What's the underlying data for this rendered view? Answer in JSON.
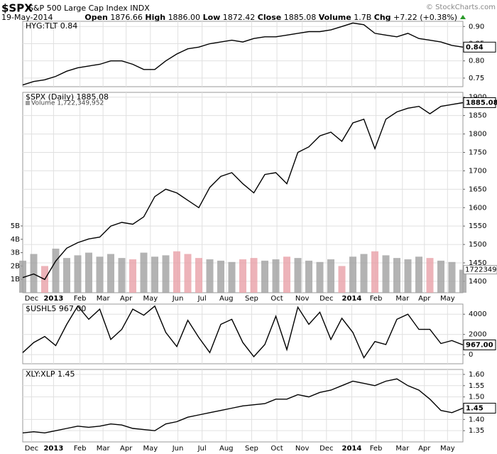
{
  "header": {
    "symbol": "$SPX",
    "name": "S&P 500 Large Cap Index INDX",
    "date": "19-May-2014",
    "watermark": "© StockCharts.com",
    "quote": [
      {
        "label": "Open",
        "value": "1876.66"
      },
      {
        "label": "High",
        "value": "1886.00"
      },
      {
        "label": "Low",
        "value": "1872.42"
      },
      {
        "label": "Close",
        "value": "1885.08"
      },
      {
        "label": "Volume",
        "value": "1.7B"
      },
      {
        "label": "Chg",
        "value": "+7.22 (+0.38%)"
      }
    ]
  },
  "chart_data": [
    {
      "type": "line",
      "legend": "HYG:TLT 0.84",
      "last_label": "0.84",
      "xlim": [
        0,
        40
      ],
      "x": [
        0,
        1,
        2,
        3,
        4,
        5,
        6,
        7,
        8,
        9,
        10,
        11,
        12,
        13,
        14,
        15,
        16,
        17,
        18,
        19,
        20,
        21,
        22,
        23,
        24,
        25,
        26,
        27,
        28,
        29,
        30,
        31,
        32,
        33,
        34,
        35,
        36,
        37,
        38,
        39,
        40
      ],
      "ylim": [
        0.725,
        0.915
      ],
      "yticks": [
        {
          "value": 0.9,
          "label": "0.90"
        },
        0.85,
        {
          "value": 0.8,
          "label": "0.80"
        },
        0.75
      ],
      "grid": true,
      "series": [
        {
          "name": "HYG:TLT",
          "color": "#000000",
          "values": [
            0.73,
            0.74,
            0.745,
            0.755,
            0.77,
            0.78,
            0.785,
            0.79,
            0.8,
            0.8,
            0.79,
            0.775,
            0.775,
            0.8,
            0.82,
            0.835,
            0.84,
            0.85,
            0.855,
            0.86,
            0.855,
            0.865,
            0.87,
            0.87,
            0.875,
            0.88,
            0.885,
            0.885,
            0.89,
            0.9,
            0.91,
            0.905,
            0.88,
            0.875,
            0.87,
            0.88,
            0.865,
            0.86,
            0.855,
            0.845,
            0.84
          ]
        }
      ]
    },
    {
      "type": "price-volume",
      "legend": "$SPX (Daily) 1885.08",
      "volume_legend": "Volume 1,722,349,952",
      "last_label": "1885.08",
      "volume_last_label": "1722349",
      "xlim": [
        0,
        40
      ],
      "x": [
        0,
        1,
        2,
        3,
        4,
        5,
        6,
        7,
        8,
        9,
        10,
        11,
        12,
        13,
        14,
        15,
        16,
        17,
        18,
        19,
        20,
        21,
        22,
        23,
        24,
        25,
        26,
        27,
        28,
        29,
        30,
        31,
        32,
        33,
        34,
        35,
        36,
        37,
        38,
        39,
        40
      ],
      "xticks": [
        {
          "value": 0.8,
          "label": "Dec"
        },
        {
          "value": 2.8,
          "label": "2013"
        },
        {
          "value": 5.2,
          "label": "Feb"
        },
        {
          "value": 7.3,
          "label": "Mar"
        },
        {
          "value": 9.4,
          "label": "Apr"
        },
        {
          "value": 11.6,
          "label": "May"
        },
        {
          "value": 14.1,
          "label": "Jun"
        },
        {
          "value": 16.3,
          "label": "Jul"
        },
        {
          "value": 18.5,
          "label": "Aug"
        },
        {
          "value": 20.8,
          "label": "Sep"
        },
        {
          "value": 23.1,
          "label": "Oct"
        },
        {
          "value": 25.4,
          "label": "Nov"
        },
        {
          "value": 27.6,
          "label": "Dec"
        },
        {
          "value": 29.9,
          "label": "2014"
        },
        {
          "value": 32.1,
          "label": "Feb"
        },
        {
          "value": 34.5,
          "label": "Mar"
        },
        {
          "value": 36.5,
          "label": "Apr"
        },
        {
          "value": 38.6,
          "label": "May"
        }
      ],
      "ylim": [
        1369,
        1913
      ],
      "yticks": [
        1400,
        1450,
        1500,
        1550,
        1600,
        1650,
        1700,
        1750,
        1800,
        1850,
        1900
      ],
      "y2lim": [
        0,
        15
      ],
      "y2ticks": [
        {
          "value": 1,
          "label": "1B"
        },
        {
          "value": 2,
          "label": "2B"
        },
        {
          "value": 3,
          "label": "3B"
        },
        {
          "value": 4,
          "label": "4B"
        },
        {
          "value": 5,
          "label": "5B"
        }
      ],
      "grid": true,
      "series": [
        {
          "name": "$SPX",
          "color": "#000000",
          "values": [
            1410,
            1420,
            1405,
            1455,
            1490,
            1505,
            1515,
            1520,
            1550,
            1560,
            1555,
            1575,
            1630,
            1650,
            1640,
            1620,
            1600,
            1655,
            1685,
            1695,
            1665,
            1640,
            1690,
            1695,
            1665,
            1750,
            1765,
            1795,
            1805,
            1780,
            1830,
            1840,
            1760,
            1840,
            1860,
            1870,
            1875,
            1855,
            1875,
            1880,
            1885.08
          ]
        },
        {
          "name": "Volume",
          "axis": "y2",
          "color": "#a0a0a0",
          "down_color": "#e8a0a8",
          "values": [
            2.4,
            2.9,
            2.0,
            3.3,
            2.6,
            2.8,
            3.0,
            2.7,
            2.9,
            2.6,
            2.5,
            3.0,
            2.7,
            2.8,
            3.1,
            2.9,
            2.6,
            2.5,
            2.4,
            2.3,
            2.5,
            2.6,
            2.4,
            2.5,
            2.7,
            2.6,
            2.4,
            2.3,
            2.5,
            2.0,
            2.7,
            2.9,
            3.1,
            2.8,
            2.6,
            2.5,
            2.7,
            2.6,
            2.4,
            2.3,
            1.722349952
          ]
        }
      ]
    },
    {
      "type": "line",
      "legend": "$USHL5 967.00",
      "last_label": "967.00",
      "xlim": [
        0,
        40
      ],
      "x": [
        0,
        1,
        2,
        3,
        4,
        5,
        6,
        7,
        8,
        9,
        10,
        11,
        12,
        13,
        14,
        15,
        16,
        17,
        18,
        19,
        20,
        21,
        22,
        23,
        24,
        25,
        26,
        27,
        28,
        29,
        30,
        31,
        32,
        33,
        34,
        35,
        36,
        37,
        38,
        39,
        40
      ],
      "ylim": [
        -900,
        5000
      ],
      "yticks": [
        0,
        2000,
        4000
      ],
      "grid": true,
      "series": [
        {
          "name": "$USHL5",
          "color": "#000000",
          "values": [
            200,
            1200,
            1800,
            900,
            3000,
            4800,
            3500,
            4500,
            1500,
            2500,
            4500,
            3900,
            4800,
            2200,
            800,
            3400,
            1700,
            200,
            3000,
            3500,
            1200,
            -200,
            1000,
            3800,
            500,
            4700,
            3000,
            4200,
            1500,
            3600,
            2200,
            -300,
            1300,
            1000,
            3500,
            4000,
            2500,
            2500,
            1100,
            1400,
            967
          ]
        }
      ]
    },
    {
      "type": "line",
      "legend": "XLY:XLP 1.45",
      "last_label": "1.45",
      "xlim": [
        0,
        40
      ],
      "x": [
        0,
        1,
        2,
        3,
        4,
        5,
        6,
        7,
        8,
        9,
        10,
        11,
        12,
        13,
        14,
        15,
        16,
        17,
        18,
        19,
        20,
        21,
        22,
        23,
        24,
        25,
        26,
        27,
        28,
        29,
        30,
        31,
        32,
        33,
        34,
        35,
        36,
        37,
        38,
        39,
        40
      ],
      "xticks": [
        {
          "value": 0.8,
          "label": "Dec"
        },
        {
          "value": 2.8,
          "label": "2013"
        },
        {
          "value": 5.2,
          "label": "Feb"
        },
        {
          "value": 7.3,
          "label": "Mar"
        },
        {
          "value": 9.4,
          "label": "Apr"
        },
        {
          "value": 11.6,
          "label": "May"
        },
        {
          "value": 14.1,
          "label": "Jun"
        },
        {
          "value": 16.3,
          "label": "Jul"
        },
        {
          "value": 18.5,
          "label": "Aug"
        },
        {
          "value": 20.8,
          "label": "Sep"
        },
        {
          "value": 23.1,
          "label": "Oct"
        },
        {
          "value": 25.4,
          "label": "Nov"
        },
        {
          "value": 27.6,
          "label": "Dec"
        },
        {
          "value": 29.9,
          "label": "2014"
        },
        {
          "value": 32.1,
          "label": "Feb"
        },
        {
          "value": 34.5,
          "label": "Mar"
        },
        {
          "value": 36.5,
          "label": "Apr"
        },
        {
          "value": 38.6,
          "label": "May"
        }
      ],
      "ylim": [
        1.3,
        1.622
      ],
      "yticks": [
        {
          "value": 1.6,
          "label": "1.60"
        },
        1.55,
        {
          "value": 1.5,
          "label": "1.50"
        },
        {
          "value": 1.4,
          "label": "1.40"
        },
        1.35
      ],
      "grid": true,
      "series": [
        {
          "name": "XLY:XLP",
          "color": "#000000",
          "values": [
            1.34,
            1.345,
            1.34,
            1.35,
            1.36,
            1.37,
            1.365,
            1.37,
            1.38,
            1.375,
            1.36,
            1.355,
            1.35,
            1.38,
            1.39,
            1.41,
            1.42,
            1.43,
            1.44,
            1.45,
            1.46,
            1.465,
            1.47,
            1.49,
            1.49,
            1.51,
            1.5,
            1.52,
            1.53,
            1.55,
            1.57,
            1.56,
            1.55,
            1.57,
            1.58,
            1.55,
            1.53,
            1.49,
            1.44,
            1.43,
            1.45
          ]
        }
      ]
    }
  ]
}
